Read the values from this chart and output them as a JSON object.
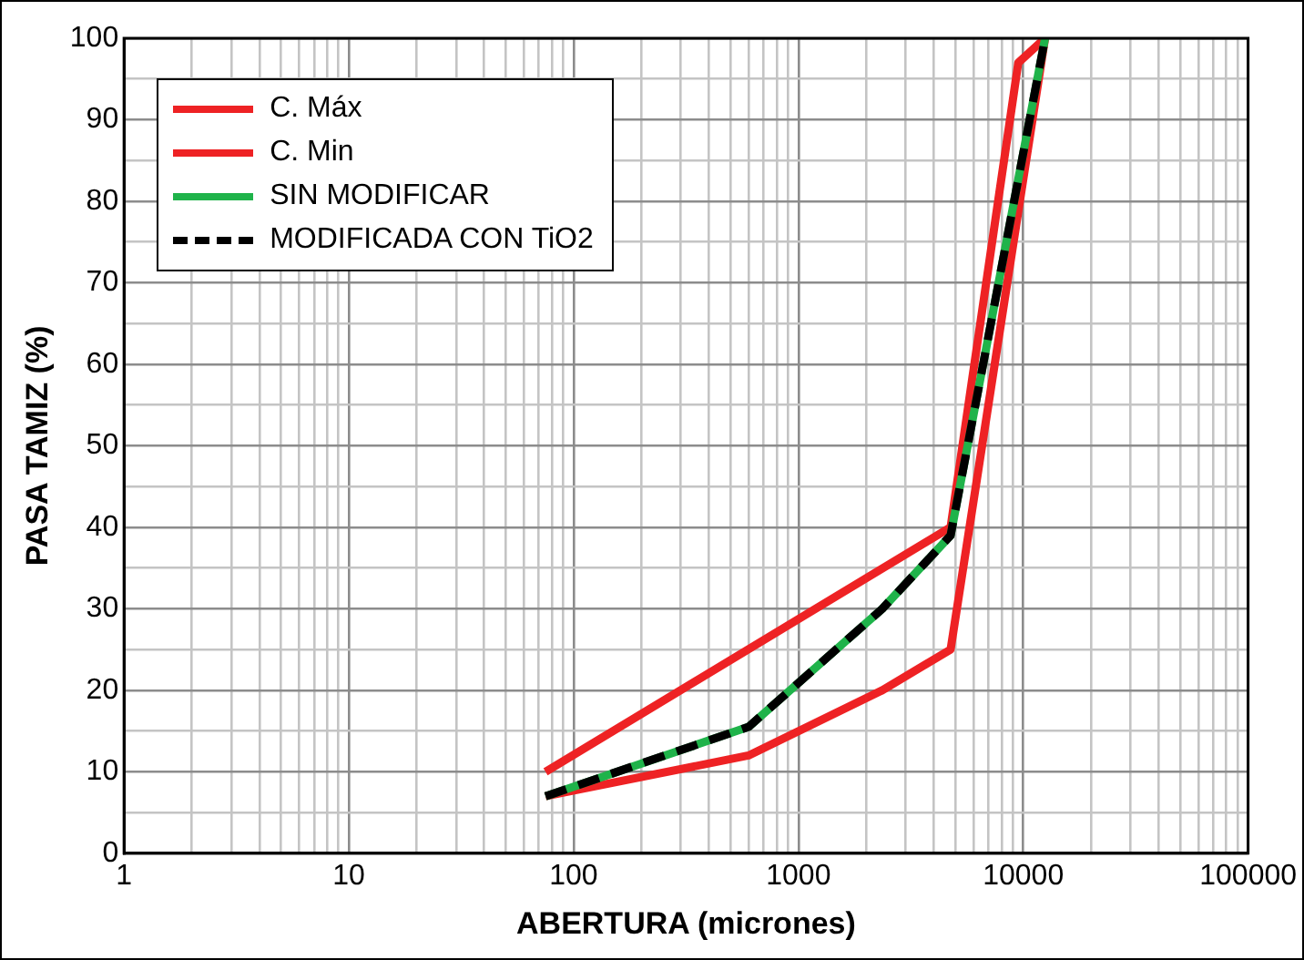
{
  "chart_data": {
    "type": "line",
    "xlabel": "ABERTURA (micrones)",
    "ylabel": "PASA TAMIZ (%)",
    "log": "x",
    "grid": true,
    "legend": "top left",
    "marker": "none",
    "xlim": [
      1,
      100000
    ],
    "xticks": [
      1,
      {
        "value": 2,
        "label": null
      },
      {
        "value": 3,
        "label": null
      },
      {
        "value": 4,
        "label": null
      },
      {
        "value": 5,
        "label": null
      },
      {
        "value": 6,
        "label": null
      },
      {
        "value": 7,
        "label": null
      },
      {
        "value": 8,
        "label": null
      },
      {
        "value": 9,
        "label": null
      },
      10,
      {
        "value": 20,
        "label": null
      },
      {
        "value": 30,
        "label": null
      },
      {
        "value": 40,
        "label": null
      },
      {
        "value": 50,
        "label": null
      },
      {
        "value": 60,
        "label": null
      },
      {
        "value": 70,
        "label": null
      },
      {
        "value": 80,
        "label": null
      },
      {
        "value": 90,
        "label": null
      },
      100,
      {
        "value": 200,
        "label": null
      },
      {
        "value": 300,
        "label": null
      },
      {
        "value": 400,
        "label": null
      },
      {
        "value": 500,
        "label": null
      },
      {
        "value": 600,
        "label": null
      },
      {
        "value": 700,
        "label": null
      },
      {
        "value": 800,
        "label": null
      },
      {
        "value": 900,
        "label": null
      },
      1000,
      {
        "value": 2000,
        "label": null
      },
      {
        "value": 3000,
        "label": null
      },
      {
        "value": 4000,
        "label": null
      },
      {
        "value": 5000,
        "label": null
      },
      {
        "value": 6000,
        "label": null
      },
      {
        "value": 7000,
        "label": null
      },
      {
        "value": 8000,
        "label": null
      },
      {
        "value": 9000,
        "label": null
      },
      10000,
      {
        "value": 20000,
        "label": null
      },
      {
        "value": 30000,
        "label": null
      },
      {
        "value": 40000,
        "label": null
      },
      {
        "value": 50000,
        "label": null
      },
      {
        "value": 60000,
        "label": null
      },
      {
        "value": 70000,
        "label": null
      },
      {
        "value": 80000,
        "label": null
      },
      {
        "value": 90000,
        "label": null
      },
      100000
    ],
    "ylim": [
      0,
      100
    ],
    "yticks": [
      0,
      {
        "value": 5,
        "label": null
      },
      10,
      {
        "value": 15,
        "label": null
      },
      20,
      {
        "value": 25,
        "label": null
      },
      30,
      {
        "value": 35,
        "label": null
      },
      40,
      {
        "value": 45,
        "label": null
      },
      50,
      {
        "value": 55,
        "label": null
      },
      60,
      {
        "value": 65,
        "label": null
      },
      70,
      {
        "value": 75,
        "label": null
      },
      80,
      {
        "value": 85,
        "label": null
      },
      90,
      {
        "value": 95,
        "label": null
      },
      100
    ],
    "series": [
      {
        "name": "C. Máx",
        "color": "#ee2224",
        "line_style": "solid",
        "x": [
          75,
          4750,
          9500,
          12500
        ],
        "values": [
          10,
          40,
          97,
          100
        ]
      },
      {
        "name": "C. Min",
        "color": "#ee2224",
        "line_style": "solid",
        "x": [
          75,
          600,
          2360,
          4750,
          12500
        ],
        "values": [
          7,
          12,
          20,
          25,
          100
        ]
      },
      {
        "name": "SIN MODIFICAR",
        "color": "#1fb34a",
        "line_style": "solid",
        "x": [
          75,
          600,
          2360,
          4750,
          12500
        ],
        "values": [
          7,
          15.5,
          30,
          39,
          100
        ]
      },
      {
        "name": "MODIFICADA CON TiO2",
        "color": "#000000",
        "line_style": "dashed",
        "x": [
          75,
          600,
          2360,
          4750,
          12500
        ],
        "values": [
          7,
          15.5,
          30,
          39,
          100
        ]
      }
    ]
  }
}
